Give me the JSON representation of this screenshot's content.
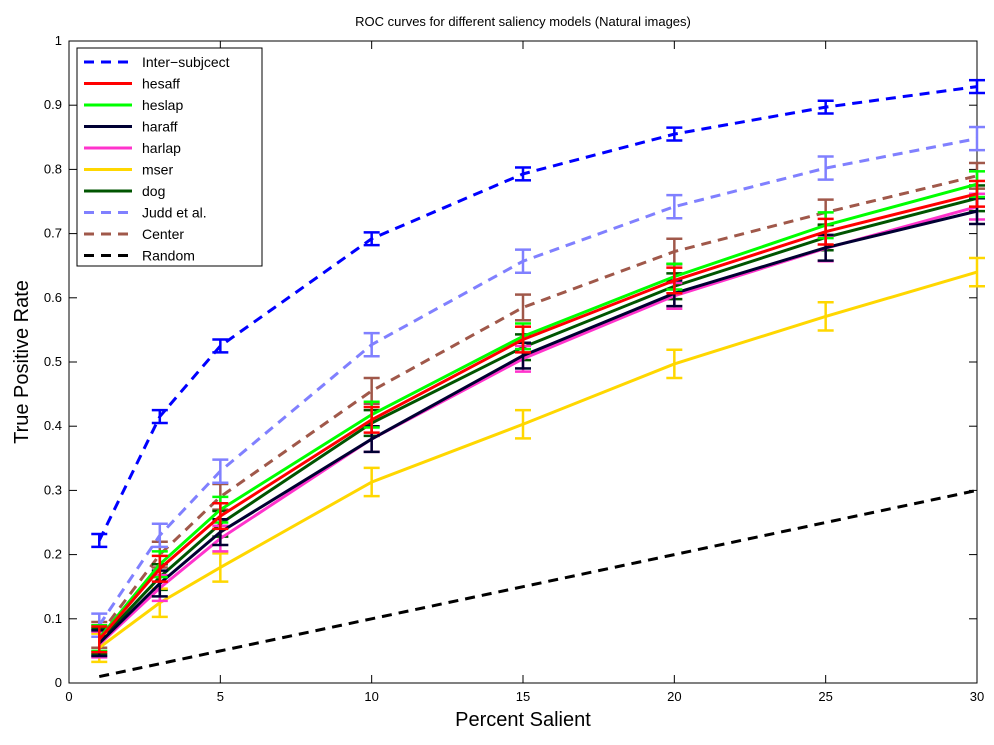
{
  "chart_data": {
    "type": "line",
    "title": "ROC curves for different saliency models (Natural images)",
    "xlabel": "Percent Salient",
    "ylabel": "True Positive Rate",
    "xlim": [
      0,
      30
    ],
    "ylim": [
      0,
      1
    ],
    "xticks": [
      "0",
      "5",
      "10",
      "15",
      "20",
      "25",
      "30"
    ],
    "yticks": [
      "0",
      "0.1",
      "0.2",
      "0.3",
      "0.4",
      "0.5",
      "0.6",
      "0.7",
      "0.8",
      "0.9",
      "1"
    ],
    "grid": false,
    "legend_position": "top-left",
    "x": [
      1,
      3,
      5,
      10,
      15,
      20,
      25,
      30
    ],
    "series": [
      {
        "name": "Inter−subjcect",
        "color": "#0000ff",
        "dashed": true,
        "values": [
          0.222,
          0.415,
          0.525,
          0.692,
          0.793,
          0.855,
          0.897,
          0.929
        ],
        "err": 0.01
      },
      {
        "name": "hesaff",
        "color": "#ff0000",
        "dashed": false,
        "values": [
          0.068,
          0.178,
          0.26,
          0.41,
          0.535,
          0.627,
          0.703,
          0.762
        ],
        "err": 0.02
      },
      {
        "name": "heslap",
        "color": "#00ff00",
        "dashed": false,
        "values": [
          0.07,
          0.185,
          0.27,
          0.418,
          0.54,
          0.633,
          0.713,
          0.777
        ],
        "err": 0.02
      },
      {
        "name": "haraff",
        "color": "#000033",
        "dashed": false,
        "values": [
          0.062,
          0.155,
          0.235,
          0.38,
          0.51,
          0.607,
          0.678,
          0.735
        ],
        "err": 0.02
      },
      {
        "name": "harlap",
        "color": "#ff33cc",
        "dashed": false,
        "values": [
          0.06,
          0.148,
          0.225,
          0.38,
          0.505,
          0.603,
          0.677,
          0.742
        ],
        "err": 0.02
      },
      {
        "name": "mser",
        "color": "#ffd700",
        "dashed": false,
        "values": [
          0.055,
          0.125,
          0.18,
          0.313,
          0.403,
          0.497,
          0.571,
          0.64
        ],
        "err": 0.022
      },
      {
        "name": "dog",
        "color": "#005500",
        "dashed": false,
        "values": [
          0.065,
          0.165,
          0.248,
          0.405,
          0.523,
          0.618,
          0.694,
          0.755
        ],
        "err": 0.02
      },
      {
        "name": "Judd et al.",
        "color": "#8080ff",
        "dashed": true,
        "values": [
          0.09,
          0.23,
          0.33,
          0.527,
          0.657,
          0.742,
          0.802,
          0.848
        ],
        "err": 0.018
      },
      {
        "name": "Center",
        "color": "#a0584a",
        "dashed": true,
        "values": [
          0.075,
          0.2,
          0.29,
          0.455,
          0.585,
          0.672,
          0.733,
          0.79
        ],
        "err": 0.02
      },
      {
        "name": "Random",
        "color": "#000000",
        "dashed": true,
        "values": [
          0.01,
          0.03,
          0.05,
          0.1,
          0.15,
          0.2,
          0.25,
          0.3
        ],
        "err": 0
      }
    ]
  }
}
